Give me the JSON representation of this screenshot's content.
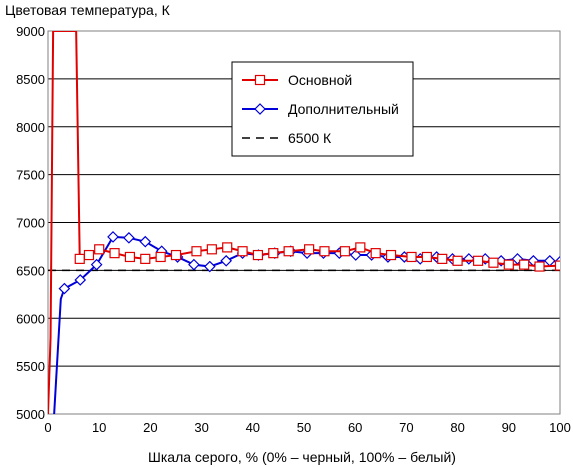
{
  "chart_data": {
    "type": "line",
    "title": "",
    "ylabel": "Цветовая температура, К",
    "xlabel": "Шкала серого, % (0% – черный, 100% – белый)",
    "xlim": [
      0,
      100
    ],
    "ylim": [
      5000,
      9000
    ],
    "xticks": [
      0,
      10,
      20,
      30,
      40,
      50,
      60,
      70,
      80,
      90,
      100
    ],
    "yticks": [
      5000,
      5500,
      6000,
      6500,
      7000,
      7500,
      8000,
      8500,
      9000
    ],
    "grid": "horizontal",
    "legend_position": "top-right",
    "series": [
      {
        "name": "Основной",
        "color": "#e00000",
        "marker": "square",
        "x": [
          0,
          0.5,
          1,
          5.5,
          6.2,
          8,
          10,
          13,
          16,
          19,
          22,
          25,
          29,
          32,
          35,
          38,
          41,
          44,
          47,
          51,
          54,
          58,
          61,
          64,
          67,
          71,
          74,
          77,
          80,
          84,
          87,
          90,
          93,
          96,
          100
        ],
        "y": [
          5000,
          5800,
          9000,
          9000,
          6620,
          6660,
          6720,
          6680,
          6640,
          6620,
          6640,
          6660,
          6700,
          6720,
          6740,
          6700,
          6660,
          6680,
          6700,
          6720,
          6700,
          6700,
          6740,
          6680,
          6660,
          6640,
          6640,
          6620,
          6600,
          6600,
          6580,
          6560,
          6560,
          6540,
          6550
        ]
      },
      {
        "name": "Дополнительный",
        "color": "#0000d8",
        "marker": "diamond",
        "x": [
          1.2,
          2.5,
          3.2,
          6.3,
          9.5,
          12.7,
          15.8,
          19,
          22.2,
          25.3,
          28.5,
          31.6,
          34.8,
          38,
          41.1,
          44.3,
          47.4,
          50.6,
          53.8,
          56.9,
          60.1,
          63.2,
          66.4,
          69.6,
          72.7,
          75.9,
          79,
          82.2,
          85.4,
          88.5,
          91.7,
          94.8,
          98,
          100
        ],
        "y": [
          5000,
          6200,
          6310,
          6400,
          6560,
          6850,
          6840,
          6800,
          6700,
          6640,
          6560,
          6540,
          6600,
          6680,
          6660,
          6680,
          6700,
          6680,
          6680,
          6680,
          6660,
          6660,
          6640,
          6640,
          6620,
          6640,
          6620,
          6620,
          6620,
          6600,
          6620,
          6600,
          6600,
          6590
        ]
      },
      {
        "name": "6500 К",
        "color": "#000000",
        "dashed": true,
        "x": [
          0,
          100
        ],
        "y": [
          6500,
          6500
        ]
      }
    ]
  }
}
